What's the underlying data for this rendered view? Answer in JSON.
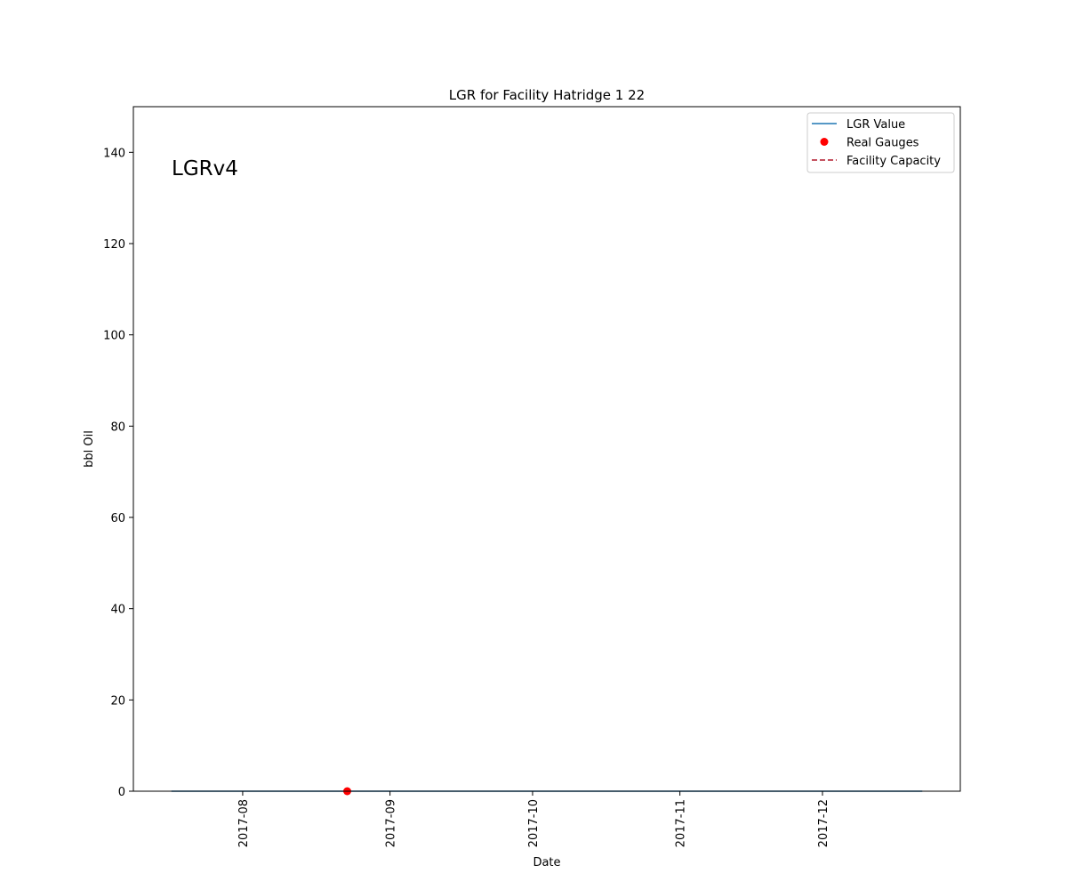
{
  "chart_data": {
    "type": "line",
    "title": "LGR for Facility Hatridge 1 22",
    "xlabel": "Date",
    "ylabel": "bbl Oil",
    "annotation": "LGRv4",
    "x_range": [
      "2017-07-09",
      "2017-12-30"
    ],
    "ylim": [
      0,
      150
    ],
    "y_ticks": [
      0,
      20,
      40,
      60,
      80,
      100,
      120,
      140
    ],
    "x_ticks": [
      "2017-08",
      "2017-09",
      "2017-10",
      "2017-11",
      "2017-12"
    ],
    "x_tick_dates": [
      "2017-08-01",
      "2017-09-01",
      "2017-10-01",
      "2017-11-01",
      "2017-12-01"
    ],
    "grid": false,
    "legend_position": "top-right",
    "series": [
      {
        "name": "LGR Value",
        "kind": "line",
        "color": "#1f77b4",
        "x": [
          "2017-07-17",
          "2017-12-22"
        ],
        "y": [
          0,
          0
        ]
      },
      {
        "name": "Real Gauges",
        "kind": "scatter",
        "color": "#ff0000",
        "x": [
          "2017-08-23"
        ],
        "y": [
          0
        ]
      },
      {
        "name": "Facility Capacity",
        "kind": "dashed-line",
        "color": "#b2182b",
        "x": [],
        "y": []
      }
    ]
  }
}
